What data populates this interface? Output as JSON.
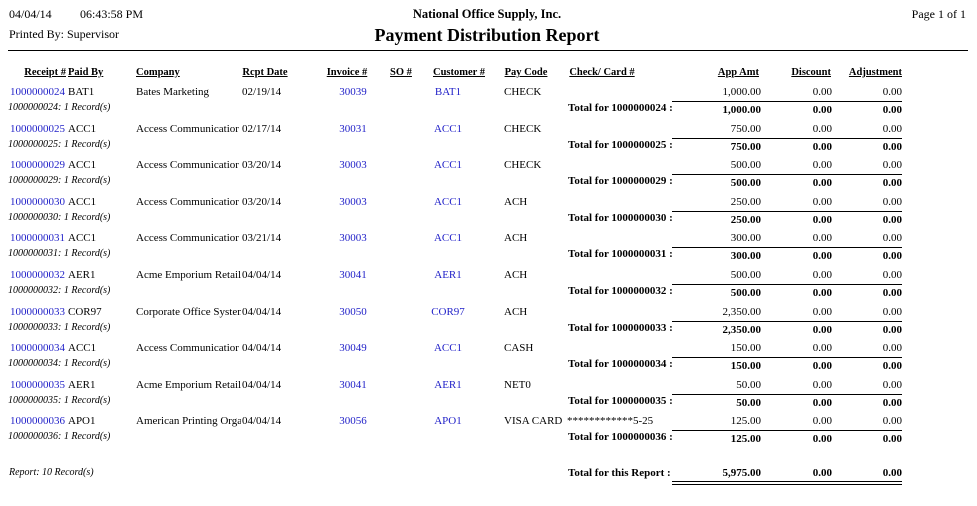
{
  "header": {
    "date": "04/04/14",
    "time": "06:43:58 PM",
    "printed_by": "Printed By: Supervisor",
    "company": "National Office Supply, Inc.",
    "title": "Payment Distribution Report",
    "page": "Page 1 of 1"
  },
  "columns": [
    "Receipt #",
    "Paid By",
    "Company",
    "Rcpt Date",
    "Invoice #",
    "SO #",
    "Customer #",
    "Pay Code",
    "Check/ Card #",
    "App Amt",
    "Discount",
    "Adjustment"
  ],
  "records": [
    {
      "receipt": "1000000024",
      "paid_by": "BAT1",
      "company": "Bates Marketing",
      "date": "02/19/14",
      "invoice": "30039",
      "customer": "BAT1",
      "pay_code": "CHECK",
      "app_amt": "1,000.00",
      "discount": "0.00",
      "adjustment": "0.00",
      "count": "1000000024: 1 Record(s)",
      "total_label": "Total for 1000000024 :",
      "total_amt": "1,000.00",
      "total_discount": "0.00",
      "total_adjustment": "0.00"
    },
    {
      "receipt": "1000000025",
      "paid_by": "ACC1",
      "company": "Access Communicatior",
      "date": "02/17/14",
      "invoice": "30031",
      "customer": "ACC1",
      "pay_code": "CHECK",
      "app_amt": "750.00",
      "discount": "0.00",
      "adjustment": "0.00",
      "count": "1000000025: 1 Record(s)",
      "total_label": "Total for 1000000025 :",
      "total_amt": "750.00",
      "total_discount": "0.00",
      "total_adjustment": "0.00"
    },
    {
      "receipt": "1000000029",
      "paid_by": "ACC1",
      "company": "Access Communicatior",
      "date": "03/20/14",
      "invoice": "30003",
      "customer": "ACC1",
      "pay_code": "CHECK",
      "app_amt": "500.00",
      "discount": "0.00",
      "adjustment": "0.00",
      "count": "1000000029: 1 Record(s)",
      "total_label": "Total for 1000000029 :",
      "total_amt": "500.00",
      "total_discount": "0.00",
      "total_adjustment": "0.00"
    },
    {
      "receipt": "1000000030",
      "paid_by": "ACC1",
      "company": "Access Communicatior",
      "date": "03/20/14",
      "invoice": "30003",
      "customer": "ACC1",
      "pay_code": "ACH",
      "app_amt": "250.00",
      "discount": "0.00",
      "adjustment": "0.00",
      "count": "1000000030: 1 Record(s)",
      "total_label": "Total for 1000000030 :",
      "total_amt": "250.00",
      "total_discount": "0.00",
      "total_adjustment": "0.00"
    },
    {
      "receipt": "1000000031",
      "paid_by": "ACC1",
      "company": "Access Communicatior",
      "date": "03/21/14",
      "invoice": "30003",
      "customer": "ACC1",
      "pay_code": "ACH",
      "app_amt": "300.00",
      "discount": "0.00",
      "adjustment": "0.00",
      "count": "1000000031: 1 Record(s)",
      "total_label": "Total for 1000000031 :",
      "total_amt": "300.00",
      "total_discount": "0.00",
      "total_adjustment": "0.00"
    },
    {
      "receipt": "1000000032",
      "paid_by": "AER1",
      "company": "Acme Emporium Retail",
      "date": "04/04/14",
      "invoice": "30041",
      "customer": "AER1",
      "pay_code": "ACH",
      "app_amt": "500.00",
      "discount": "0.00",
      "adjustment": "0.00",
      "count": "1000000032: 1 Record(s)",
      "total_label": "Total for 1000000032 :",
      "total_amt": "500.00",
      "total_discount": "0.00",
      "total_adjustment": "0.00"
    },
    {
      "receipt": "1000000033",
      "paid_by": "COR97",
      "company": "Corporate Office Systen",
      "date": "04/04/14",
      "invoice": "30050",
      "customer": "COR97",
      "pay_code": "ACH",
      "app_amt": "2,350.00",
      "discount": "0.00",
      "adjustment": "0.00",
      "count": "1000000033: 1 Record(s)",
      "total_label": "Total for 1000000033 :",
      "total_amt": "2,350.00",
      "total_discount": "0.00",
      "total_adjustment": "0.00"
    },
    {
      "receipt": "1000000034",
      "paid_by": "ACC1",
      "company": "Access Communicatior",
      "date": "04/04/14",
      "invoice": "30049",
      "customer": "ACC1",
      "pay_code": "CASH",
      "app_amt": "150.00",
      "discount": "0.00",
      "adjustment": "0.00",
      "count": "1000000034: 1 Record(s)",
      "total_label": "Total for 1000000034 :",
      "total_amt": "150.00",
      "total_discount": "0.00",
      "total_adjustment": "0.00"
    },
    {
      "receipt": "1000000035",
      "paid_by": "AER1",
      "company": "Acme Emporium Retail",
      "date": "04/04/14",
      "invoice": "30041",
      "customer": "AER1",
      "pay_code": "NET0",
      "app_amt": "50.00",
      "discount": "0.00",
      "adjustment": "0.00",
      "count": "1000000035: 1 Record(s)",
      "total_label": "Total for 1000000035 :",
      "total_amt": "50.00",
      "total_discount": "0.00",
      "total_adjustment": "0.00"
    },
    {
      "receipt": "1000000036",
      "paid_by": "APO1",
      "company": "American Printing Orga",
      "date": "04/04/14",
      "invoice": "30056",
      "customer": "APO1",
      "pay_code": "VISA CARD",
      "check": "************5-25",
      "app_amt": "125.00",
      "discount": "0.00",
      "adjustment": "0.00",
      "count": "1000000036: 1 Record(s)",
      "total_label": "Total for 1000000036 :",
      "total_amt": "125.00",
      "total_discount": "0.00",
      "total_adjustment": "0.00"
    }
  ],
  "footer": {
    "count": "Report: 10 Record(s)",
    "total_label": "Total for this Report :",
    "total_amt": "5,975.00",
    "total_discount": "0.00",
    "total_adjustment": "0.00"
  }
}
